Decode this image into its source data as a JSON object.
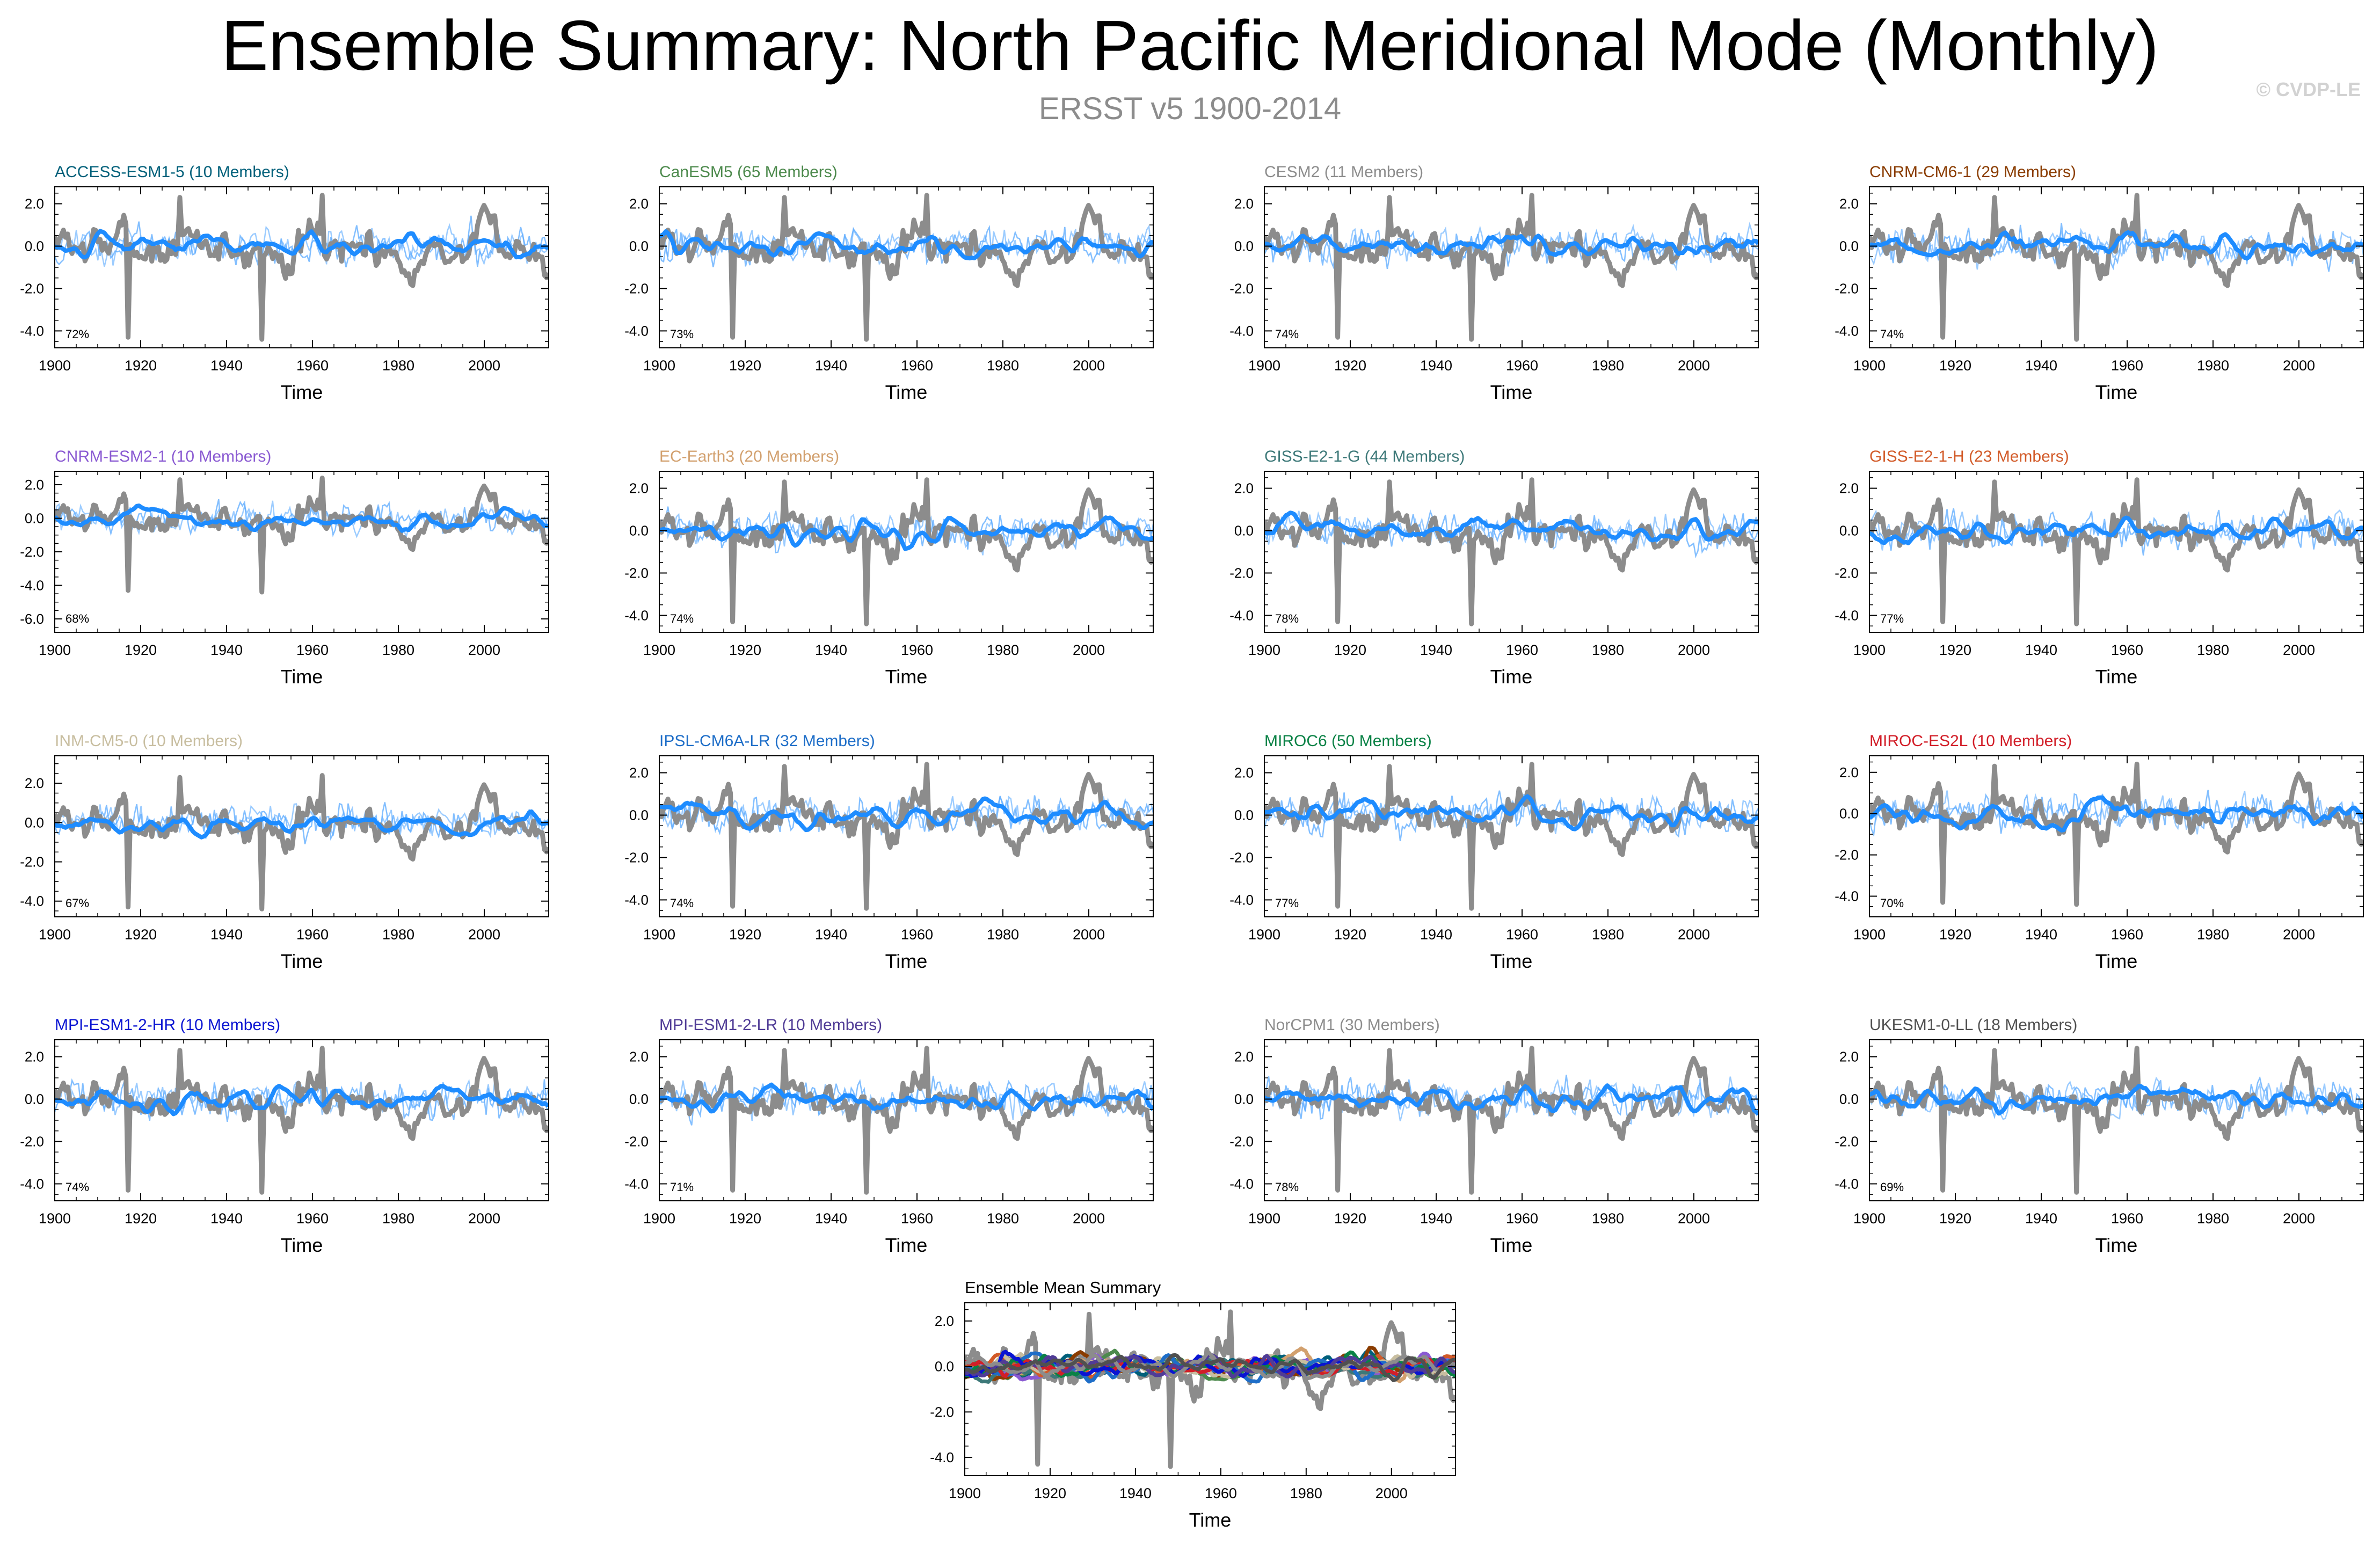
{
  "title": "Ensemble Summary: North Pacific Meridional Mode (Monthly)",
  "subtitle": "ERSST v5 1900-2014",
  "watermark": "© CVDP-LE",
  "colors": {
    "observed": "#8c8c8c",
    "member_spread": "#5aaaff",
    "ensemble_mean": "#1e8cff"
  },
  "chart_data": [
    {
      "type": "line",
      "title": "ACCESS-ESM1-5 (10 Members)",
      "title_color": "#00607a",
      "xlabel": "Time",
      "ylabel": "",
      "xlim": [
        1900,
        2015
      ],
      "ylim": [
        -4.8,
        2.8
      ],
      "x_ticks": [
        1900,
        1920,
        1940,
        1960,
        1980,
        2000
      ],
      "y_ticks": [
        -4.0,
        -2.0,
        0.0,
        2.0
      ],
      "y_tick_labels": [
        "-4.0",
        "-2.0",
        "0.0",
        "2.0"
      ],
      "annotation": "72%"
    },
    {
      "type": "line",
      "title": "CanESM5 (65 Members)",
      "title_color": "#4d8a4d",
      "xlabel": "Time",
      "ylabel": "",
      "xlim": [
        1900,
        2015
      ],
      "ylim": [
        -4.8,
        2.8
      ],
      "x_ticks": [
        1900,
        1920,
        1940,
        1960,
        1980,
        2000
      ],
      "y_ticks": [
        -4.0,
        -2.0,
        0.0,
        2.0
      ],
      "y_tick_labels": [
        "-4.0",
        "-2.0",
        "0.0",
        "2.0"
      ],
      "annotation": "73%"
    },
    {
      "type": "line",
      "title": "CESM2 (11 Members)",
      "title_color": "#8c8c8c",
      "xlabel": "Time",
      "ylabel": "",
      "xlim": [
        1900,
        2015
      ],
      "ylim": [
        -4.8,
        2.8
      ],
      "x_ticks": [
        1900,
        1920,
        1940,
        1960,
        1980,
        2000
      ],
      "y_ticks": [
        -4.0,
        -2.0,
        0.0,
        2.0
      ],
      "y_tick_labels": [
        "-4.0",
        "-2.0",
        "0.0",
        "2.0"
      ],
      "annotation": "74%"
    },
    {
      "type": "line",
      "title": "CNRM-CM6-1 (29 Members)",
      "title_color": "#8a3c00",
      "xlabel": "Time",
      "ylabel": "",
      "xlim": [
        1900,
        2015
      ],
      "ylim": [
        -4.8,
        2.8
      ],
      "x_ticks": [
        1900,
        1920,
        1940,
        1960,
        1980,
        2000
      ],
      "y_ticks": [
        -4.0,
        -2.0,
        0.0,
        2.0
      ],
      "y_tick_labels": [
        "-4.0",
        "-2.0",
        "0.0",
        "2.0"
      ],
      "annotation": "74%"
    },
    {
      "type": "line",
      "title": "CNRM-ESM2-1 (10 Members)",
      "title_color": "#8a5ad2",
      "xlabel": "Time",
      "ylabel": "",
      "xlim": [
        1900,
        2015
      ],
      "ylim": [
        -6.8,
        2.8
      ],
      "x_ticks": [
        1900,
        1920,
        1940,
        1960,
        1980,
        2000
      ],
      "y_ticks": [
        -6.0,
        -4.0,
        -2.0,
        0.0,
        2.0
      ],
      "y_tick_labels": [
        "-6.0",
        "-4.0",
        "-2.0",
        "0.0",
        "2.0"
      ],
      "annotation": "68%"
    },
    {
      "type": "line",
      "title": "EC-Earth3 (20 Members)",
      "title_color": "#d2a06e",
      "xlabel": "Time",
      "ylabel": "",
      "xlim": [
        1900,
        2015
      ],
      "ylim": [
        -4.8,
        2.8
      ],
      "x_ticks": [
        1900,
        1920,
        1940,
        1960,
        1980,
        2000
      ],
      "y_ticks": [
        -4.0,
        -2.0,
        0.0,
        2.0
      ],
      "y_tick_labels": [
        "-4.0",
        "-2.0",
        "0.0",
        "2.0"
      ],
      "annotation": "74%"
    },
    {
      "type": "line",
      "title": "GISS-E2-1-G (44 Members)",
      "title_color": "#3c7878",
      "xlabel": "Time",
      "ylabel": "",
      "xlim": [
        1900,
        2015
      ],
      "ylim": [
        -4.8,
        2.8
      ],
      "x_ticks": [
        1900,
        1920,
        1940,
        1960,
        1980,
        2000
      ],
      "y_ticks": [
        -4.0,
        -2.0,
        0.0,
        2.0
      ],
      "y_tick_labels": [
        "-4.0",
        "-2.0",
        "0.0",
        "2.0"
      ],
      "annotation": "78%"
    },
    {
      "type": "line",
      "title": "GISS-E2-1-H (23 Members)",
      "title_color": "#d25a28",
      "xlabel": "Time",
      "ylabel": "",
      "xlim": [
        1900,
        2015
      ],
      "ylim": [
        -4.8,
        2.8
      ],
      "x_ticks": [
        1900,
        1920,
        1940,
        1960,
        1980,
        2000
      ],
      "y_ticks": [
        -4.0,
        -2.0,
        0.0,
        2.0
      ],
      "y_tick_labels": [
        "-4.0",
        "-2.0",
        "0.0",
        "2.0"
      ],
      "annotation": "77%"
    },
    {
      "type": "line",
      "title": "INM-CM5-0 (10 Members)",
      "title_color": "#c8bea0",
      "xlabel": "Time",
      "ylabel": "",
      "xlim": [
        1900,
        2015
      ],
      "ylim": [
        -4.8,
        3.4
      ],
      "x_ticks": [
        1900,
        1920,
        1940,
        1960,
        1980,
        2000
      ],
      "y_ticks": [
        -4.0,
        -2.0,
        0.0,
        2.0
      ],
      "y_tick_labels": [
        "-4.0",
        "-2.0",
        "0.0",
        "2.0"
      ],
      "annotation": "67%"
    },
    {
      "type": "line",
      "title": "IPSL-CM6A-LR (32 Members)",
      "title_color": "#1e6ec8",
      "xlabel": "Time",
      "ylabel": "",
      "xlim": [
        1900,
        2015
      ],
      "ylim": [
        -4.8,
        2.8
      ],
      "x_ticks": [
        1900,
        1920,
        1940,
        1960,
        1980,
        2000
      ],
      "y_ticks": [
        -4.0,
        -2.0,
        0.0,
        2.0
      ],
      "y_tick_labels": [
        "-4.0",
        "-2.0",
        "0.0",
        "2.0"
      ],
      "annotation": "74%"
    },
    {
      "type": "line",
      "title": "MIROC6 (50 Members)",
      "title_color": "#0a8246",
      "xlabel": "Time",
      "ylabel": "",
      "xlim": [
        1900,
        2015
      ],
      "ylim": [
        -4.8,
        2.8
      ],
      "x_ticks": [
        1900,
        1920,
        1940,
        1960,
        1980,
        2000
      ],
      "y_ticks": [
        -4.0,
        -2.0,
        0.0,
        2.0
      ],
      "y_tick_labels": [
        "-4.0",
        "-2.0",
        "0.0",
        "2.0"
      ],
      "annotation": "77%"
    },
    {
      "type": "line",
      "title": "MIROC-ES2L (10 Members)",
      "title_color": "#d21e28",
      "xlabel": "Time",
      "ylabel": "",
      "xlim": [
        1900,
        2015
      ],
      "ylim": [
        -5.0,
        2.8
      ],
      "x_ticks": [
        1900,
        1920,
        1940,
        1960,
        1980,
        2000
      ],
      "y_ticks": [
        -4.0,
        -2.0,
        0.0,
        2.0
      ],
      "y_tick_labels": [
        "-4.0",
        "-2.0",
        "0.0",
        "2.0"
      ],
      "annotation": "70%"
    },
    {
      "type": "line",
      "title": "MPI-ESM1-2-HR (10 Members)",
      "title_color": "#0a14d2",
      "xlabel": "Time",
      "ylabel": "",
      "xlim": [
        1900,
        2015
      ],
      "ylim": [
        -4.8,
        2.8
      ],
      "x_ticks": [
        1900,
        1920,
        1940,
        1960,
        1980,
        2000
      ],
      "y_ticks": [
        -4.0,
        -2.0,
        0.0,
        2.0
      ],
      "y_tick_labels": [
        "-4.0",
        "-2.0",
        "0.0",
        "2.0"
      ],
      "annotation": "74%"
    },
    {
      "type": "line",
      "title": "MPI-ESM1-2-LR (10 Members)",
      "title_color": "#503c96",
      "xlabel": "Time",
      "ylabel": "",
      "xlim": [
        1900,
        2015
      ],
      "ylim": [
        -4.8,
        2.8
      ],
      "x_ticks": [
        1900,
        1920,
        1940,
        1960,
        1980,
        2000
      ],
      "y_ticks": [
        -4.0,
        -2.0,
        0.0,
        2.0
      ],
      "y_tick_labels": [
        "-4.0",
        "-2.0",
        "0.0",
        "2.0"
      ],
      "annotation": "71%"
    },
    {
      "type": "line",
      "title": "NorCPM1 (30 Members)",
      "title_color": "#8c8c8c",
      "xlabel": "Time",
      "ylabel": "",
      "xlim": [
        1900,
        2015
      ],
      "ylim": [
        -4.8,
        2.8
      ],
      "x_ticks": [
        1900,
        1920,
        1940,
        1960,
        1980,
        2000
      ],
      "y_ticks": [
        -4.0,
        -2.0,
        0.0,
        2.0
      ],
      "y_tick_labels": [
        "-4.0",
        "-2.0",
        "0.0",
        "2.0"
      ],
      "annotation": "78%"
    },
    {
      "type": "line",
      "title": "UKESM1-0-LL (18 Members)",
      "title_color": "#505050",
      "xlabel": "Time",
      "ylabel": "",
      "xlim": [
        1900,
        2015
      ],
      "ylim": [
        -4.8,
        2.8
      ],
      "x_ticks": [
        1900,
        1920,
        1940,
        1960,
        1980,
        2000
      ],
      "y_ticks": [
        -4.0,
        -2.0,
        0.0,
        2.0
      ],
      "y_tick_labels": [
        "-4.0",
        "-2.0",
        "0.0",
        "2.0"
      ],
      "annotation": "69%"
    },
    {
      "type": "line",
      "title": "Ensemble Mean Summary",
      "title_color": "#000000",
      "xlabel": "Time",
      "ylabel": "",
      "xlim": [
        1900,
        2015
      ],
      "ylim": [
        -4.8,
        2.8
      ],
      "x_ticks": [
        1900,
        1920,
        1940,
        1960,
        1980,
        2000
      ],
      "y_ticks": [
        -4.0,
        -2.0,
        0.0,
        2.0
      ],
      "y_tick_labels": [
        "-4.0",
        "-2.0",
        "0.0",
        "2.0"
      ],
      "annotation": "",
      "mean_colors": [
        "#00607a",
        "#4d8a4d",
        "#8c8c8c",
        "#8a3c00",
        "#8a5ad2",
        "#d2a06e",
        "#3c7878",
        "#d25a28",
        "#c8bea0",
        "#1e6ec8",
        "#0a8246",
        "#d21e28",
        "#0a14d2",
        "#503c96",
        "#8c8c8c",
        "#505050"
      ]
    }
  ]
}
